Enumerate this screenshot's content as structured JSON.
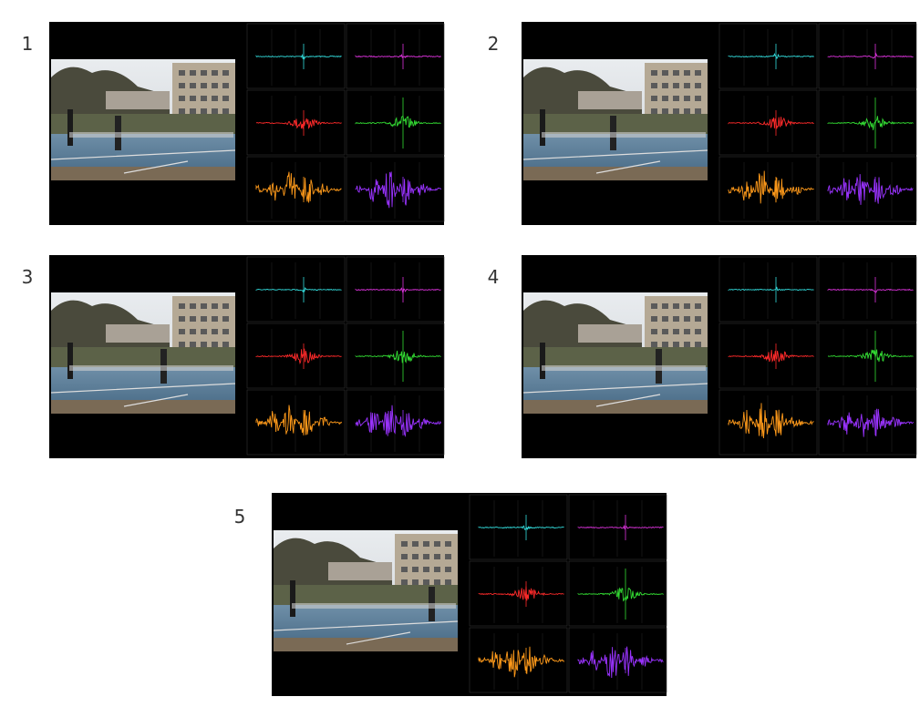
{
  "panels": [
    {
      "label": "1"
    },
    {
      "label": "2"
    },
    {
      "label": "3"
    },
    {
      "label": "4"
    },
    {
      "label": "5"
    }
  ]
}
